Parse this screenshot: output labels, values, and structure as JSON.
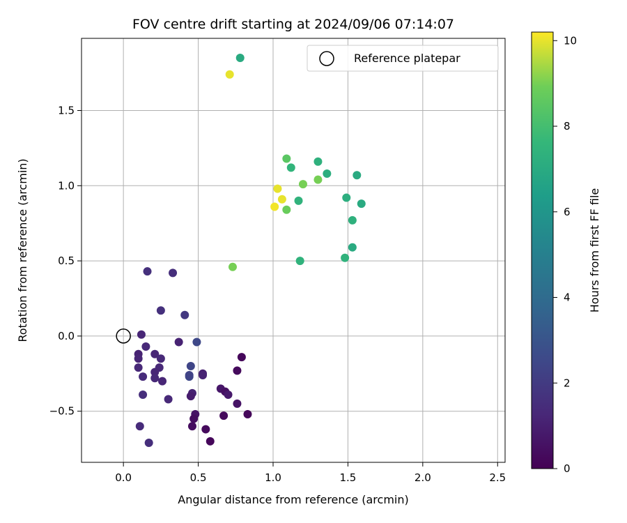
{
  "chart_data": {
    "type": "scatter",
    "title": "FOV centre drift starting at 2024/09/06 07:14:07",
    "xlabel": "Angular distance from reference (arcmin)",
    "ylabel": "Rotation from reference (arcmin)",
    "xlim": [
      -0.28,
      2.55
    ],
    "ylim": [
      -0.84,
      1.98
    ],
    "xticks": [
      "0.0",
      "0.5",
      "1.0",
      "1.5",
      "2.0",
      "2.5"
    ],
    "xtick_values": [
      0.0,
      0.5,
      1.0,
      1.5,
      2.0,
      2.5
    ],
    "yticks": [
      "−0.5",
      "0.0",
      "0.5",
      "1.0",
      "1.5"
    ],
    "ytick_values": [
      -0.5,
      0.0,
      0.5,
      1.0,
      1.5
    ],
    "grid": true,
    "legend": {
      "position": "top-right",
      "entries": [
        "Reference platepar"
      ]
    },
    "reference_point": {
      "x": 0.0,
      "y": 0.0,
      "label": "Reference platepar"
    },
    "colorbar": {
      "label": "Hours from first FF file",
      "range": [
        0,
        10.2
      ],
      "ticks": [
        "0",
        "2",
        "4",
        "6",
        "8",
        "10"
      ],
      "tick_values": [
        0,
        2,
        4,
        6,
        8,
        10
      ],
      "colormap": "viridis"
    },
    "points": [
      {
        "x": 0.78,
        "y": 1.85,
        "h": 7.0
      },
      {
        "x": 0.71,
        "y": 1.74,
        "h": 10.0
      },
      {
        "x": 1.09,
        "y": 1.18,
        "h": 8.5
      },
      {
        "x": 1.3,
        "y": 1.16,
        "h": 7.3
      },
      {
        "x": 1.12,
        "y": 1.12,
        "h": 7.5
      },
      {
        "x": 1.36,
        "y": 1.08,
        "h": 7.2
      },
      {
        "x": 1.56,
        "y": 1.07,
        "h": 7.0
      },
      {
        "x": 1.2,
        "y": 1.01,
        "h": 9.0
      },
      {
        "x": 1.3,
        "y": 1.04,
        "h": 9.0
      },
      {
        "x": 1.03,
        "y": 0.98,
        "h": 10.0
      },
      {
        "x": 1.06,
        "y": 0.91,
        "h": 10.0
      },
      {
        "x": 1.01,
        "y": 0.86,
        "h": 10.1
      },
      {
        "x": 1.09,
        "y": 0.84,
        "h": 8.8
      },
      {
        "x": 1.17,
        "y": 0.9,
        "h": 7.4
      },
      {
        "x": 1.49,
        "y": 0.92,
        "h": 7.2
      },
      {
        "x": 1.59,
        "y": 0.88,
        "h": 7.0
      },
      {
        "x": 1.53,
        "y": 0.77,
        "h": 7.3
      },
      {
        "x": 1.53,
        "y": 0.59,
        "h": 7.0
      },
      {
        "x": 1.48,
        "y": 0.52,
        "h": 7.4
      },
      {
        "x": 1.18,
        "y": 0.5,
        "h": 7.4
      },
      {
        "x": 0.73,
        "y": 0.46,
        "h": 9.0
      },
      {
        "x": 0.16,
        "y": 0.43,
        "h": 1.6
      },
      {
        "x": 0.33,
        "y": 0.42,
        "h": 1.5
      },
      {
        "x": 0.25,
        "y": 0.17,
        "h": 1.6
      },
      {
        "x": 0.41,
        "y": 0.14,
        "h": 1.9
      },
      {
        "x": 0.12,
        "y": 0.01,
        "h": 1.2
      },
      {
        "x": 0.49,
        "y": -0.04,
        "h": 2.5
      },
      {
        "x": 0.37,
        "y": -0.04,
        "h": 1.1
      },
      {
        "x": 0.15,
        "y": -0.07,
        "h": 1.3
      },
      {
        "x": 0.1,
        "y": -0.12,
        "h": 1.1
      },
      {
        "x": 0.21,
        "y": -0.12,
        "h": 1.2
      },
      {
        "x": 0.1,
        "y": -0.15,
        "h": 1.2
      },
      {
        "x": 0.25,
        "y": -0.15,
        "h": 1.3
      },
      {
        "x": 0.45,
        "y": -0.2,
        "h": 2.4
      },
      {
        "x": 0.1,
        "y": -0.21,
        "h": 1.3
      },
      {
        "x": 0.24,
        "y": -0.21,
        "h": 1.3
      },
      {
        "x": 0.79,
        "y": -0.14,
        "h": 0.2
      },
      {
        "x": 0.76,
        "y": -0.23,
        "h": 0.3
      },
      {
        "x": 0.21,
        "y": -0.24,
        "h": 1.2
      },
      {
        "x": 0.53,
        "y": -0.25,
        "h": 1.0
      },
      {
        "x": 0.53,
        "y": -0.26,
        "h": 1.1
      },
      {
        "x": 0.13,
        "y": -0.27,
        "h": 1.4
      },
      {
        "x": 0.44,
        "y": -0.27,
        "h": 2.5
      },
      {
        "x": 0.44,
        "y": -0.26,
        "h": 2.3
      },
      {
        "x": 0.21,
        "y": -0.28,
        "h": 1.3
      },
      {
        "x": 0.26,
        "y": -0.3,
        "h": 1.2
      },
      {
        "x": 0.65,
        "y": -0.35,
        "h": 0.7
      },
      {
        "x": 0.68,
        "y": -0.37,
        "h": 0.5
      },
      {
        "x": 0.7,
        "y": -0.39,
        "h": 0.8
      },
      {
        "x": 0.46,
        "y": -0.38,
        "h": 1.1
      },
      {
        "x": 0.45,
        "y": -0.4,
        "h": 0.9
      },
      {
        "x": 0.13,
        "y": -0.39,
        "h": 1.5
      },
      {
        "x": 0.3,
        "y": -0.42,
        "h": 1.3
      },
      {
        "x": 0.76,
        "y": -0.45,
        "h": 0.6
      },
      {
        "x": 0.48,
        "y": -0.52,
        "h": 0.6
      },
      {
        "x": 0.83,
        "y": -0.52,
        "h": 0.2
      },
      {
        "x": 0.67,
        "y": -0.53,
        "h": 0.3
      },
      {
        "x": 0.47,
        "y": -0.55,
        "h": 0.4
      },
      {
        "x": 0.46,
        "y": -0.6,
        "h": 0.4
      },
      {
        "x": 0.11,
        "y": -0.6,
        "h": 1.4
      },
      {
        "x": 0.55,
        "y": -0.62,
        "h": 0.3
      },
      {
        "x": 0.17,
        "y": -0.71,
        "h": 1.5
      },
      {
        "x": 0.58,
        "y": -0.7,
        "h": 0.2
      }
    ]
  }
}
